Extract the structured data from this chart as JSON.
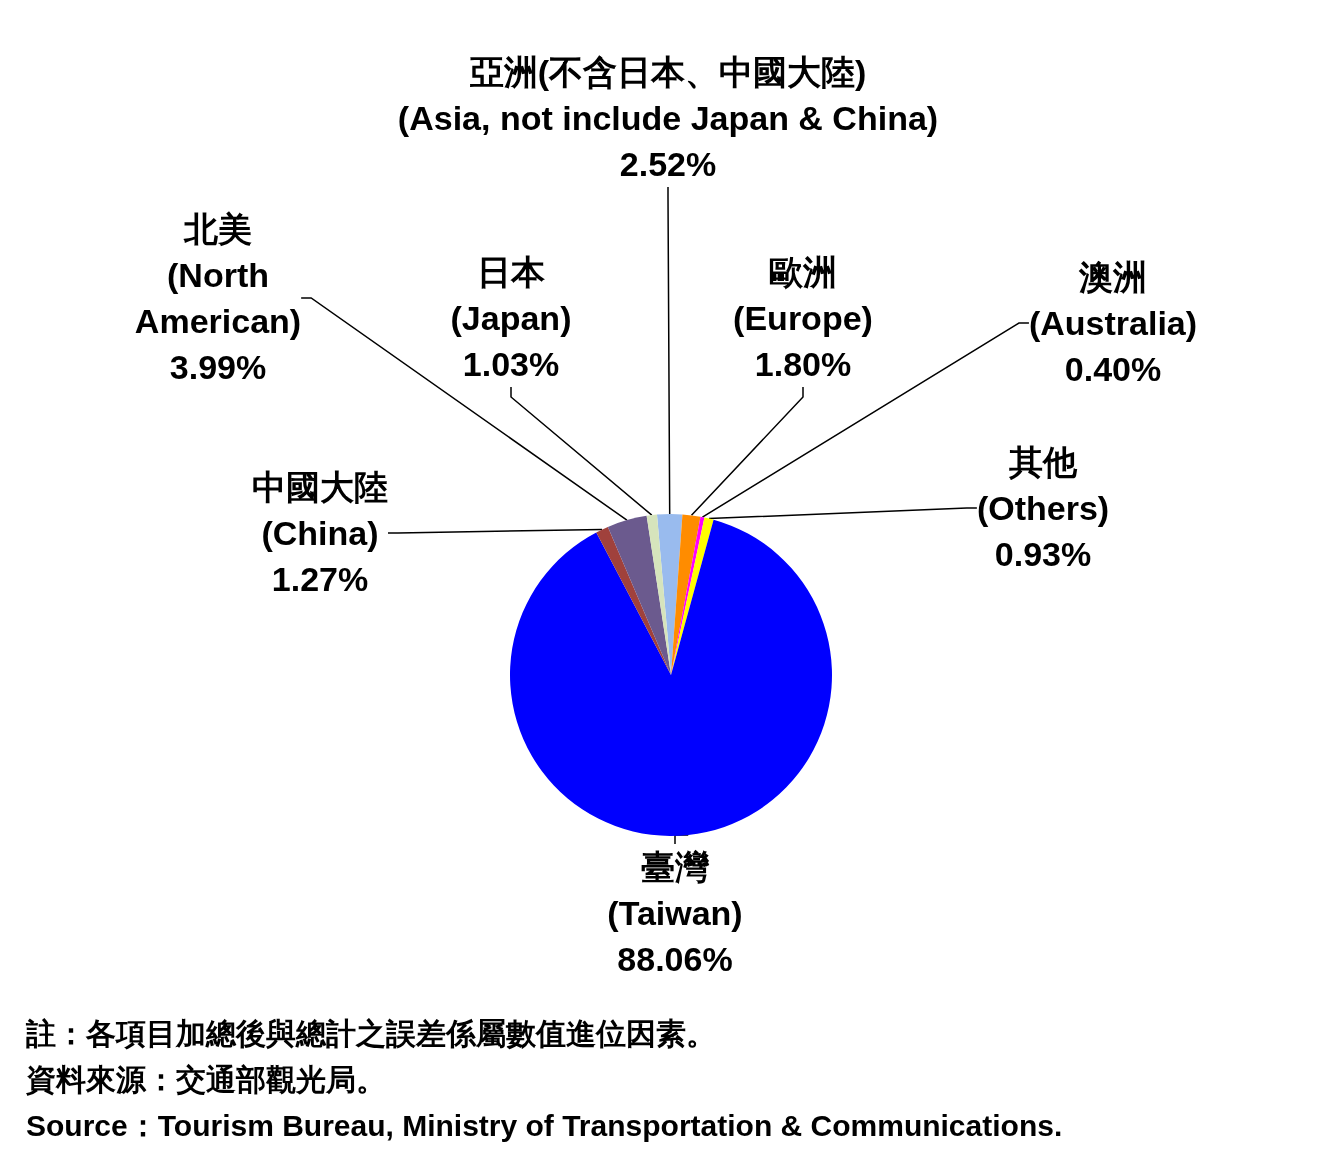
{
  "chart_data": {
    "type": "pie",
    "categories": [
      "亞洲(不含日本、中國大陸)\n(Asia, not include Japan & China)",
      "歐洲\n(Europe)",
      "澳洲\n(Australia)",
      "其他\n(Others)",
      "臺灣\n(Taiwan)",
      "中國大陸\n(China)",
      "北美\n(North\nAmerican)",
      "日本\n(Japan)"
    ],
    "values": [
      2.52,
      1.8,
      0.4,
      0.93,
      88.06,
      1.27,
      3.99,
      1.03
    ],
    "value_labels": [
      "2.52%",
      "1.80%",
      "0.40%",
      "0.93%",
      "88.06%",
      "1.27%",
      "3.99%",
      "1.03%"
    ],
    "colors": [
      "#99bbee",
      "#ff8c00",
      "#ff00ff",
      "#ffff00",
      "#0000ff",
      "#a0413c",
      "#6b5a8e",
      "#d6e4bc"
    ],
    "legend": false,
    "annotations": [
      "註：各項目加總後與總計之誤差係屬數值進位因素。",
      "資料來源：交通部觀光局。",
      "Source：Tourism Bureau, Ministry of Transportation & Communications."
    ]
  }
}
